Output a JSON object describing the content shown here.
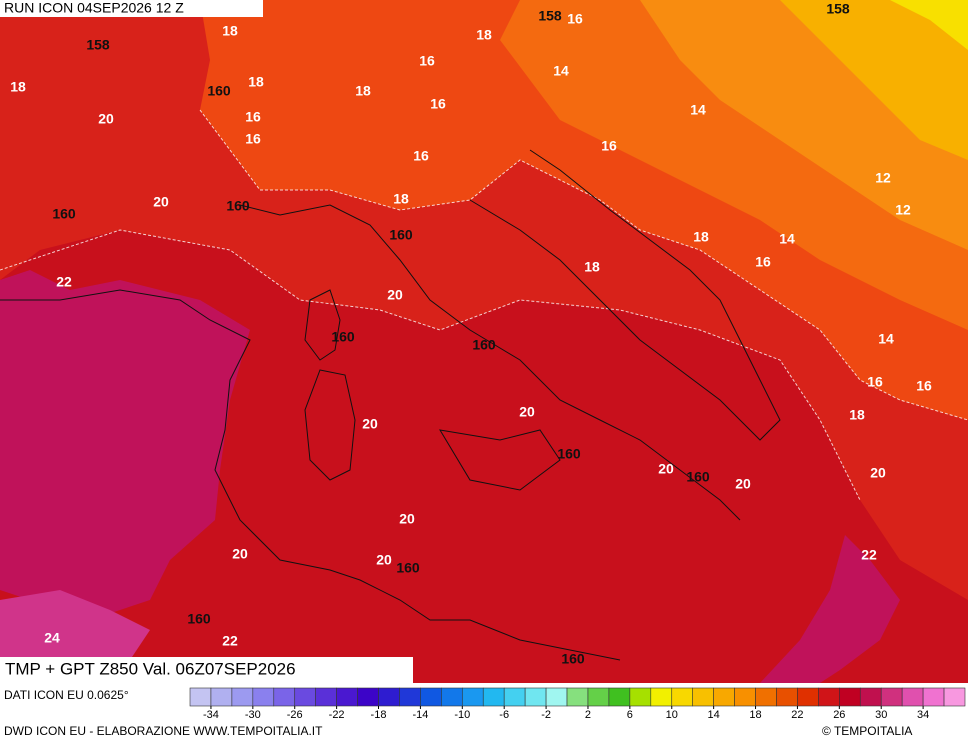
{
  "header": {
    "run": "RUN ICON 04SEP2026 12 Z",
    "title": "TMP + GPT Z850 Val. 06Z07SEP2026"
  },
  "contour_labels": [
    "158",
    "16",
    "158",
    "18",
    "18",
    "158",
    "16",
    "14",
    "18",
    "18",
    "160",
    "18",
    "16",
    "14",
    "20",
    "16",
    "16",
    "16",
    "16",
    "12",
    "20",
    "160",
    "18",
    "12",
    "160",
    "160",
    "18",
    "14",
    "18",
    "16",
    "22",
    "20",
    "160",
    "160",
    "14",
    "16",
    "16",
    "20",
    "18",
    "20",
    "160",
    "20",
    "160",
    "20",
    "20",
    "20",
    "20",
    "22",
    "20",
    "160",
    "160",
    "24",
    "22",
    "160"
  ],
  "colorbar": {
    "ticks": [
      -34,
      -30,
      -26,
      -22,
      -18,
      -14,
      -10,
      -6,
      -2,
      2,
      6,
      10,
      14,
      18,
      22,
      26,
      30,
      34
    ],
    "colors": [
      "#c4c4f2",
      "#b0b0f0",
      "#9c9af0",
      "#8a80ee",
      "#7a64e8",
      "#6a4ae0",
      "#5a30d8",
      "#4a18d0",
      "#3c04c8",
      "#2e1cd0",
      "#2038d8",
      "#1058e2",
      "#1278ea",
      "#1a98f0",
      "#22b8f0",
      "#44d0f0",
      "#70e6f0",
      "#a0f6f0",
      "#86e07e",
      "#64d048",
      "#40c020",
      "#a6e000",
      "#f2f000",
      "#f8d800",
      "#f8c000",
      "#f8a800",
      "#f89000",
      "#f07000",
      "#e85000",
      "#e03000",
      "#d01418",
      "#c00022",
      "#c0104e",
      "#d0307e",
      "#e050ae",
      "#f072d0",
      "#f898e0"
    ]
  },
  "footer": {
    "source": "DATI ICON EU 0.0625°",
    "credit": "DWD ICON EU - ELABORAZIONE WWW.TEMPOITALIA.IT",
    "brand": "© TEMPOITALIA"
  }
}
